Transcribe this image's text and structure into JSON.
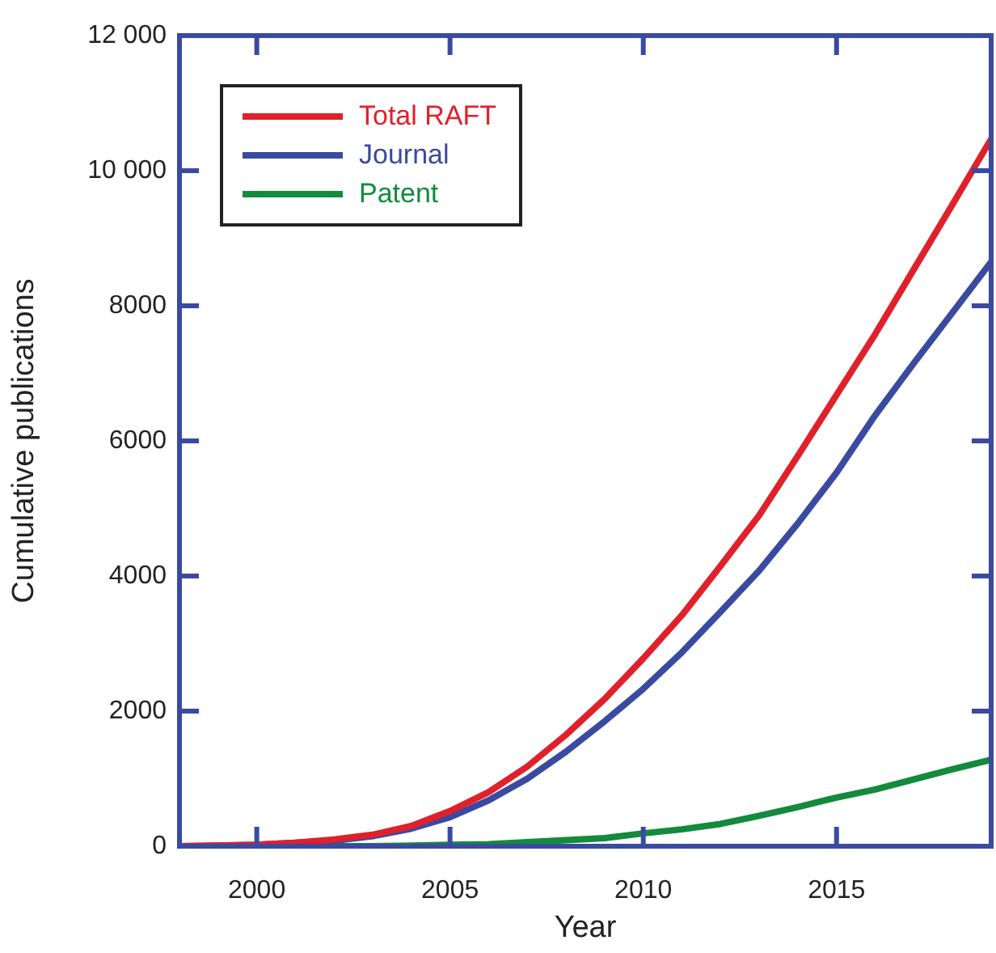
{
  "chart_data": {
    "type": "line",
    "xlabel": "Year",
    "ylabel": "Cumulative publications",
    "x": [
      1998,
      1999,
      2000,
      2001,
      2002,
      2003,
      2004,
      2005,
      2006,
      2007,
      2008,
      2009,
      2010,
      2011,
      2012,
      2013,
      2014,
      2015,
      2016,
      2017,
      2018,
      2019
    ],
    "series": [
      {
        "name": "Total RAFT",
        "color": "#e0202a",
        "values": [
          0,
          10,
          20,
          50,
          100,
          170,
          300,
          520,
          800,
          1180,
          1650,
          2180,
          2780,
          3420,
          4150,
          4900,
          5780,
          6680,
          7580,
          8540,
          9500,
          10470
        ]
      },
      {
        "name": "Journal",
        "color": "#3a4aa0",
        "values": [
          0,
          10,
          20,
          50,
          80,
          150,
          260,
          430,
          680,
          1000,
          1400,
          1850,
          2330,
          2870,
          3470,
          4080,
          4780,
          5530,
          6380,
          7150,
          7900,
          8650
        ]
      },
      {
        "name": "Patent",
        "color": "#138a3c",
        "x": [
          2002,
          2003,
          2004,
          2005,
          2006,
          2007,
          2008,
          2009,
          2010,
          2011,
          2012,
          2013,
          2014,
          2015,
          2016,
          2017,
          2018,
          2019
        ],
        "values": [
          0,
          0,
          10,
          20,
          30,
          60,
          90,
          120,
          190,
          250,
          330,
          450,
          580,
          720,
          840,
          990,
          1140,
          1280
        ]
      }
    ],
    "xlim": [
      1998,
      2019
    ],
    "xticks": [
      2000,
      2005,
      2010,
      2015
    ],
    "ylim": [
      0,
      12000
    ],
    "yticks": [
      0,
      2000,
      4000,
      6000,
      8000,
      {
        "value": 10000,
        "label": "10 000"
      },
      {
        "value": 12000,
        "label": "12 000"
      }
    ],
    "legend": "top left",
    "grid": false,
    "marker": "none",
    "line_style": "solid"
  }
}
